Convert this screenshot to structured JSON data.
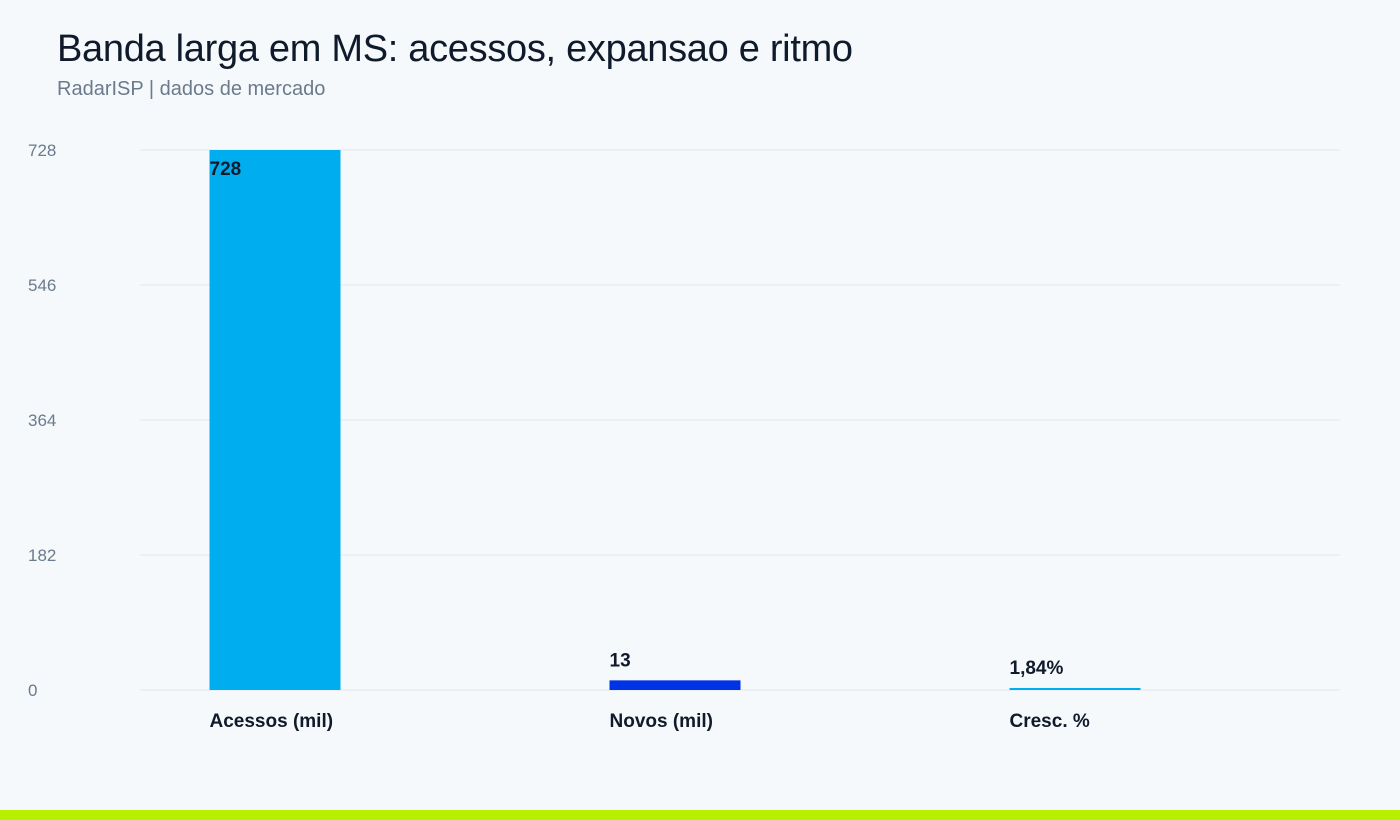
{
  "header": {
    "title": "Banda larga em MS: acessos, expansao e ritmo",
    "subtitle": "RadarISP | dados de mercado"
  },
  "chart_data": {
    "type": "bar",
    "categories": [
      "Acessos (mil)",
      "Novos (mil)",
      "Cresc. %"
    ],
    "values": [
      728,
      13,
      1.84
    ],
    "value_labels": [
      "728",
      "13",
      "1,84%"
    ],
    "colors": [
      "#00aeef",
      "#0033e6",
      "#00aeef"
    ],
    "ylim": [
      0,
      728
    ],
    "yticks": [
      "0",
      "182",
      "364",
      "546",
      "728"
    ],
    "grid": true,
    "legend": "none"
  },
  "theme": {
    "background": "#f5f9fc",
    "grid_color": "#e3e8ee",
    "accent_footer": "#b6f000"
  }
}
